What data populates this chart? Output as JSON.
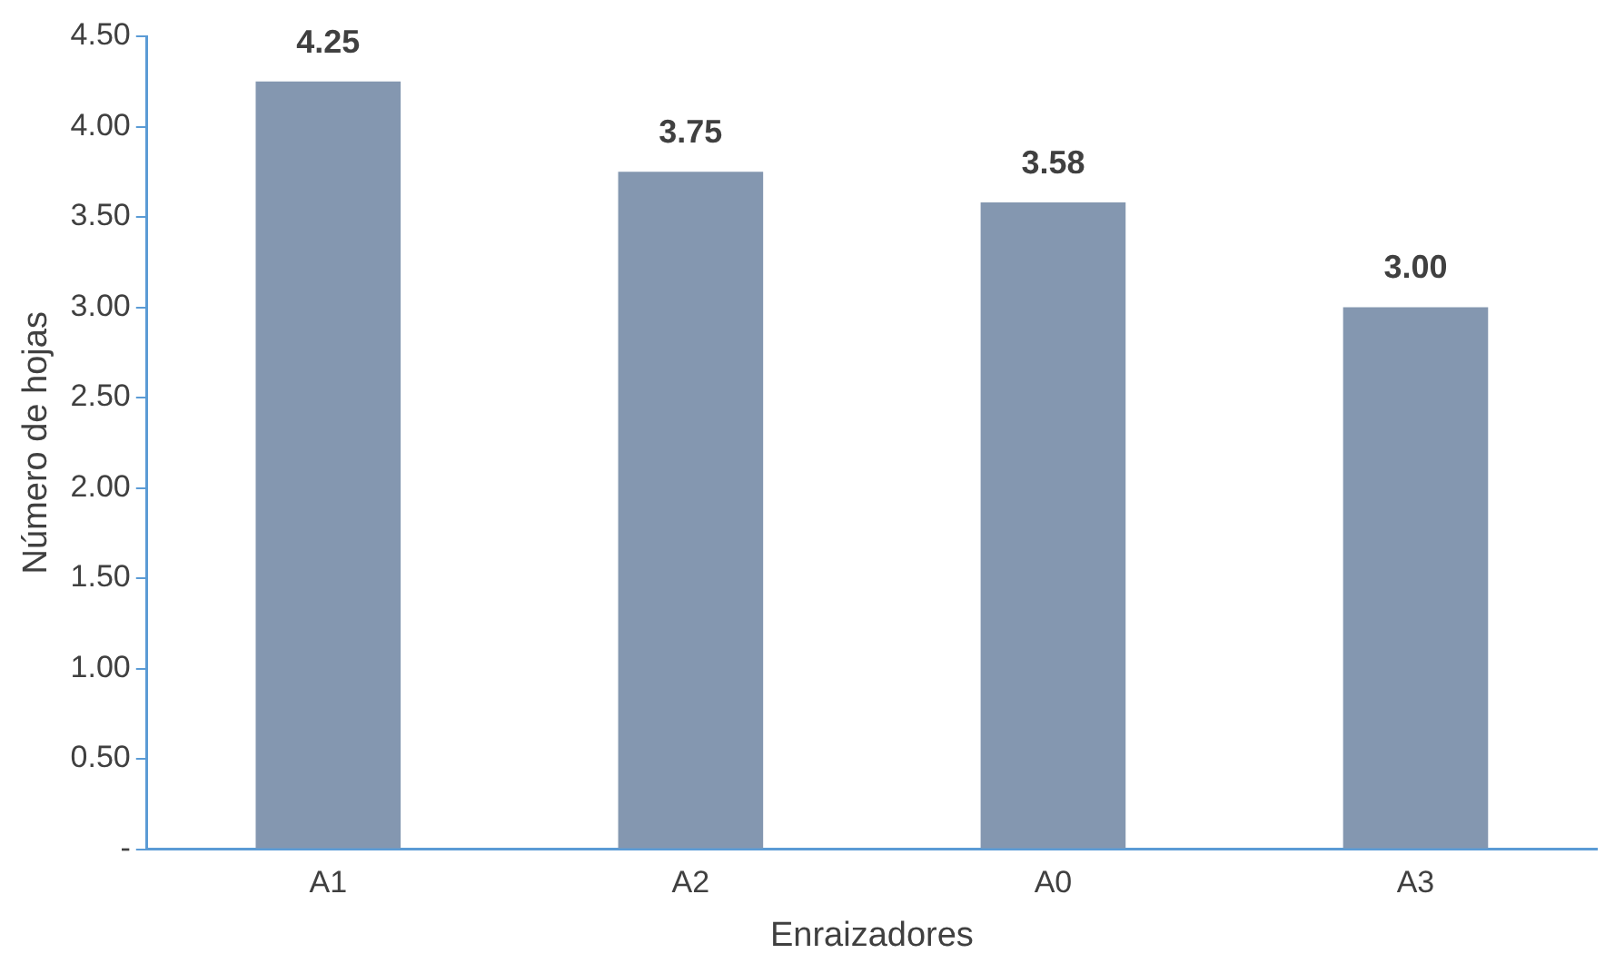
{
  "chart_data": {
    "type": "bar",
    "xlabel": "Enraizadores",
    "ylabel": "Número de hojas",
    "categories": [
      "A1",
      "A2",
      "A0",
      "A3"
    ],
    "values": [
      4.25,
      3.75,
      3.58,
      3.0
    ],
    "value_labels": [
      "4.25",
      "3.75",
      "3.58",
      "3.00"
    ],
    "color": "#8497b0",
    "ylim": [
      0,
      4.5
    ],
    "yticks": [
      {
        "value": 0,
        "label": "-"
      },
      {
        "value": 0.5,
        "label": "0.50"
      },
      {
        "value": 1,
        "label": "1.00"
      },
      {
        "value": 1.5,
        "label": "1.50"
      },
      {
        "value": 2,
        "label": "2.00"
      },
      {
        "value": 2.5,
        "label": "2.50"
      },
      {
        "value": 3,
        "label": "3.00"
      },
      {
        "value": 3.5,
        "label": "3.50"
      },
      {
        "value": 4,
        "label": "4.00"
      },
      {
        "value": 4.5,
        "label": "4.50"
      }
    ],
    "grid": false,
    "legend": false
  }
}
